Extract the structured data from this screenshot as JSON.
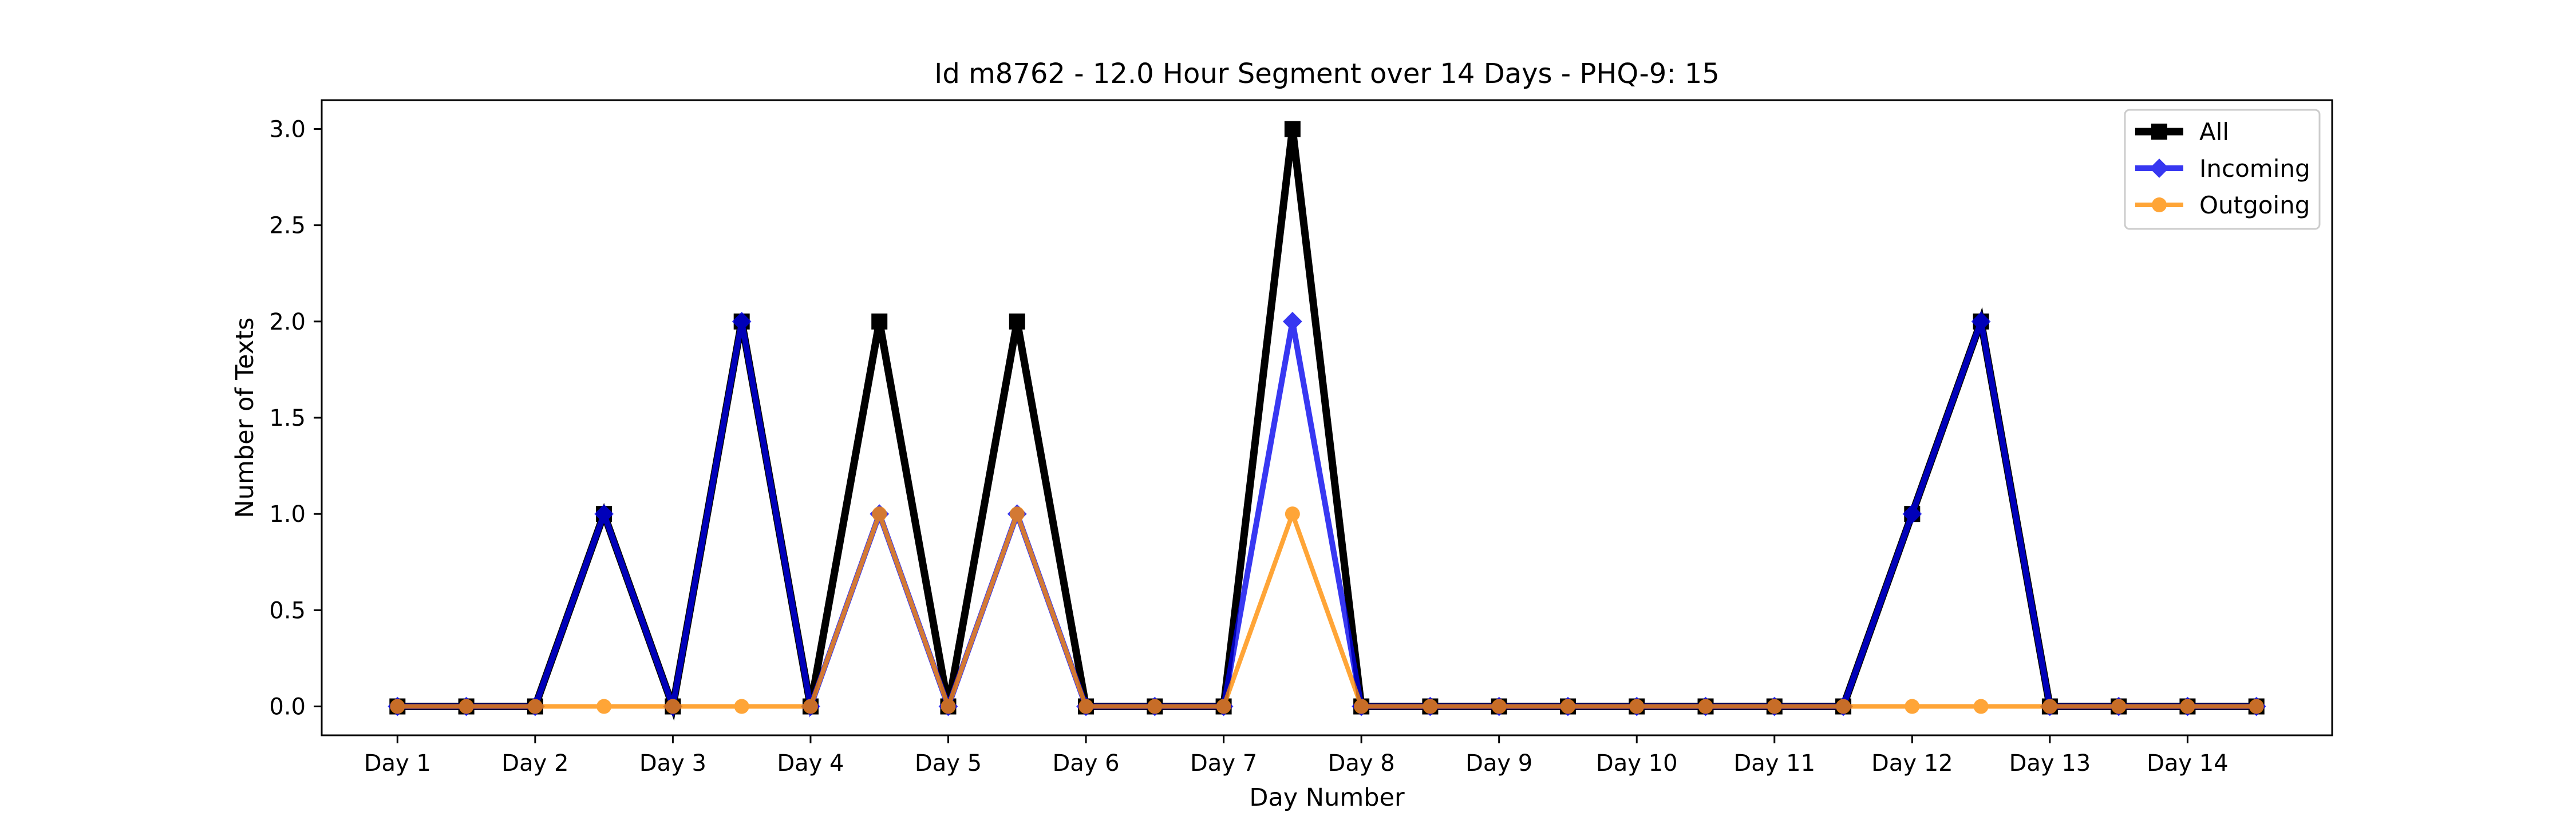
{
  "chart_data": {
    "type": "line",
    "title": "Id m8762 - 12.0 Hour Segment over 14 Days - PHQ-9: 15",
    "xlabel": "Day Number",
    "ylabel": "Number of Texts",
    "x_tick_labels": [
      "Day 1",
      "Day 2",
      "Day 3",
      "Day 4",
      "Day 5",
      "Day 6",
      "Day 7",
      "Day 8",
      "Day 9",
      "Day 10",
      "Day 11",
      "Day 12",
      "Day 13",
      "Day 14"
    ],
    "y_tick_labels": [
      "0.0",
      "0.5",
      "1.0",
      "1.5",
      "2.0",
      "2.5",
      "3.0"
    ],
    "x": [
      1,
      1.5,
      2,
      2.5,
      3,
      3.5,
      4,
      4.5,
      5,
      5.5,
      6,
      6.5,
      7,
      7.5,
      8,
      8.5,
      9,
      9.5,
      10,
      10.5,
      11,
      11.5,
      12,
      12.5,
      13,
      13.5,
      14,
      14.5
    ],
    "xlim": [
      0.45,
      15.05
    ],
    "ylim": [
      -0.15,
      3.15
    ],
    "grid": false,
    "legend_position": "upper right",
    "series": [
      {
        "name": "All",
        "color": "#000000",
        "marker": "square",
        "values": [
          0,
          0,
          0,
          1,
          0,
          2,
          0,
          2,
          0,
          2,
          0,
          0,
          0,
          3,
          0,
          0,
          0,
          0,
          0,
          0,
          0,
          0,
          1,
          2,
          0,
          0,
          0,
          0
        ]
      },
      {
        "name": "Incoming",
        "color": "#0000ee",
        "marker": "diamond",
        "values": [
          0,
          0,
          0,
          1,
          0,
          2,
          0,
          1,
          0,
          1,
          0,
          0,
          0,
          2,
          0,
          0,
          0,
          0,
          0,
          0,
          0,
          0,
          1,
          2,
          0,
          0,
          0,
          0
        ]
      },
      {
        "name": "Outgoing",
        "color": "#ff8c00",
        "marker": "circle",
        "values": [
          0,
          0,
          0,
          0,
          0,
          0,
          0,
          1,
          0,
          1,
          0,
          0,
          0,
          1,
          0,
          0,
          0,
          0,
          0,
          0,
          0,
          0,
          0,
          0,
          0,
          0,
          0,
          0
        ]
      }
    ]
  }
}
